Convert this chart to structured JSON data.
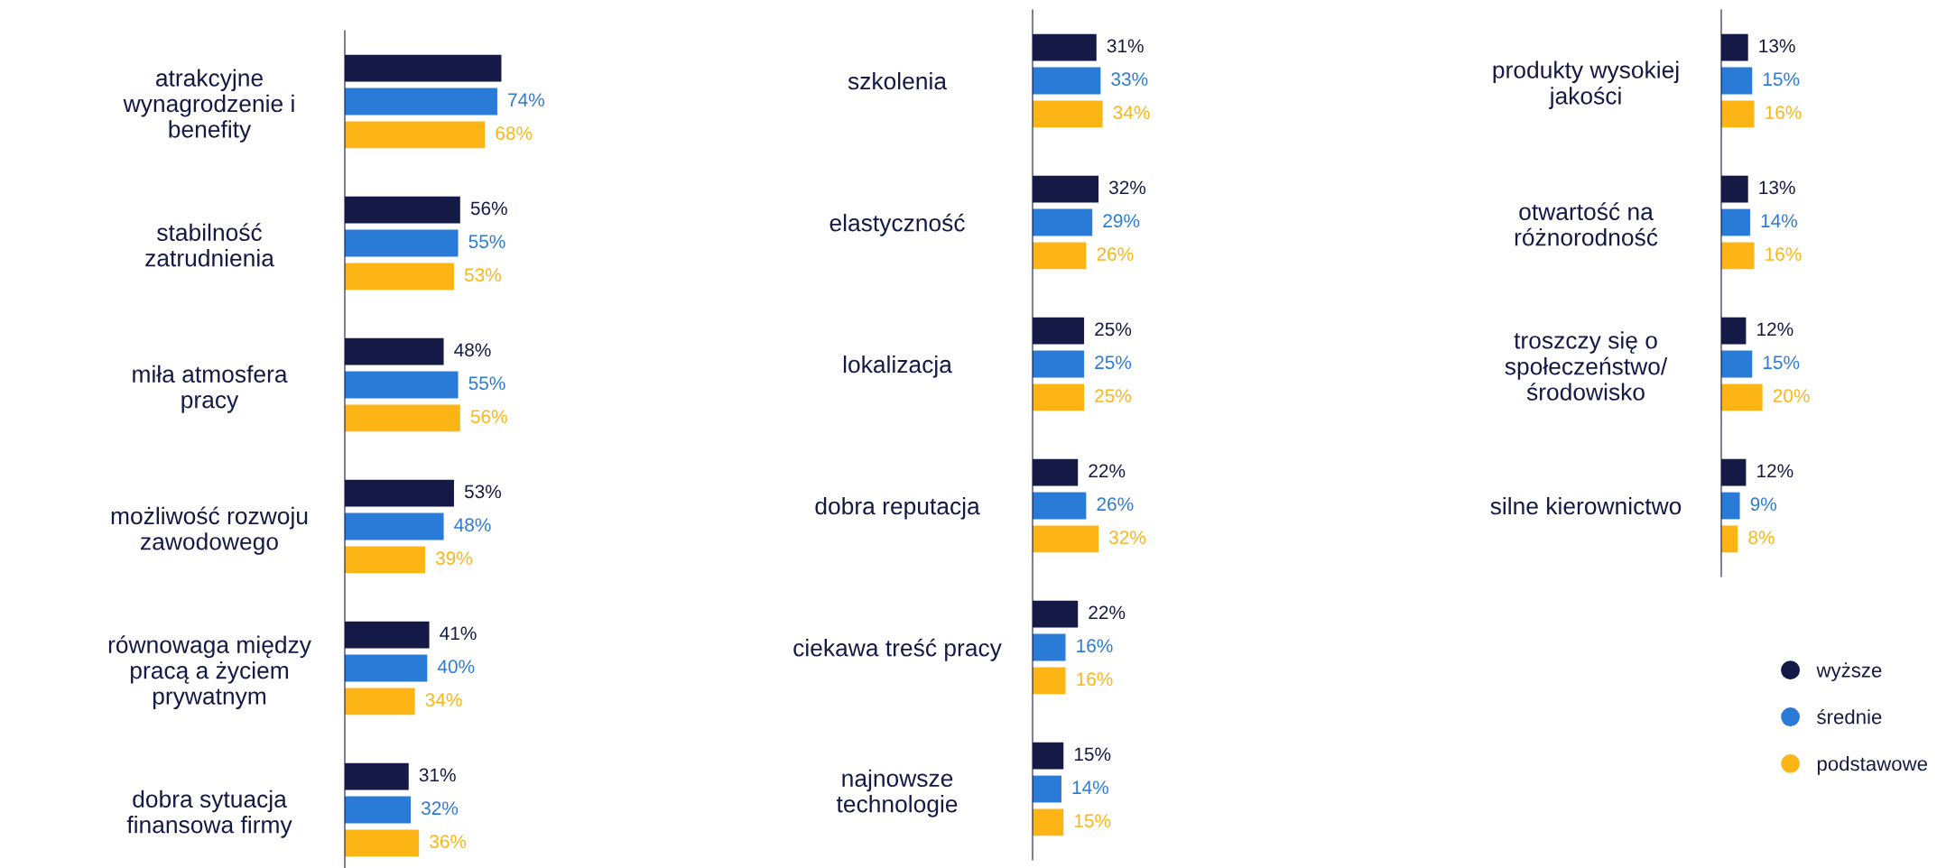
{
  "chart_data": [
    {
      "type": "bar",
      "orientation": "horizontal",
      "data_labels": true,
      "categories": [
        "atrakcyjne\nwynagrodzenie i\nbenefity",
        "stabilność\nzatrudnienia",
        "miła atmosfera\npracy",
        "możliwość rozwoju\nzawodowego",
        "równowaga między\npracą a życiem\nprywatnym",
        "dobra sytuacja\nfinansowa firmy"
      ],
      "series": [
        {
          "color": "#141a45",
          "values": [
            76,
            56,
            48,
            53,
            41,
            31
          ],
          "value_labels": [
            null,
            "56%",
            "48%",
            "53%",
            "41%",
            "31%"
          ]
        },
        {
          "color": "#2a7ad8",
          "values": [
            74,
            55,
            55,
            48,
            40,
            32
          ],
          "value_labels": [
            "74%",
            "55%",
            "55%",
            "48%",
            "40%",
            "32%"
          ]
        },
        {
          "color": "#fdb515",
          "values": [
            68,
            53,
            56,
            39,
            34,
            36
          ],
          "value_labels": [
            "68%",
            "53%",
            "56%",
            "39%",
            "34%",
            "36%"
          ]
        }
      ]
    },
    {
      "type": "bar",
      "orientation": "horizontal",
      "data_labels": true,
      "categories": [
        "szkolenia",
        "elastyczność",
        "lokalizacja",
        "dobra reputacja",
        "ciekawa treść pracy",
        "najnowsze\ntechnologie"
      ],
      "series": [
        {
          "color": "#141a45",
          "values": [
            31,
            32,
            25,
            22,
            22,
            15
          ],
          "value_labels": [
            "31%",
            "32%",
            "25%",
            "22%",
            "22%",
            "15%"
          ]
        },
        {
          "color": "#2a7ad8",
          "values": [
            33,
            29,
            25,
            26,
            16,
            14
          ],
          "value_labels": [
            "33%",
            "29%",
            "25%",
            "26%",
            "16%",
            "14%"
          ]
        },
        {
          "color": "#fdb515",
          "values": [
            34,
            26,
            25,
            32,
            16,
            15
          ],
          "value_labels": [
            "34%",
            "26%",
            "25%",
            "32%",
            "16%",
            "15%"
          ]
        }
      ]
    },
    {
      "type": "bar",
      "orientation": "horizontal",
      "data_labels": true,
      "legend": "bottom right",
      "marker": "circle",
      "categories": [
        "produkty wysokiej\njakości",
        "otwartość na\nróżnorodność",
        "troszczy się o\nspołeczeństwo/\nśrodowisko",
        "silne kierownictwo"
      ],
      "series": [
        {
          "name": "wyższe",
          "color": "#141a45",
          "values": [
            13,
            13,
            12,
            12
          ],
          "value_labels": [
            "13%",
            "13%",
            "12%",
            "12%"
          ]
        },
        {
          "name": "średnie",
          "color": "#2a7ad8",
          "values": [
            15,
            14,
            15,
            9
          ],
          "value_labels": [
            "15%",
            "14%",
            "15%",
            "9%"
          ]
        },
        {
          "name": "podstawowe",
          "color": "#fdb515",
          "values": [
            16,
            16,
            20,
            8
          ],
          "value_labels": [
            "16%",
            "16%",
            "20%",
            "8%"
          ]
        }
      ]
    }
  ]
}
